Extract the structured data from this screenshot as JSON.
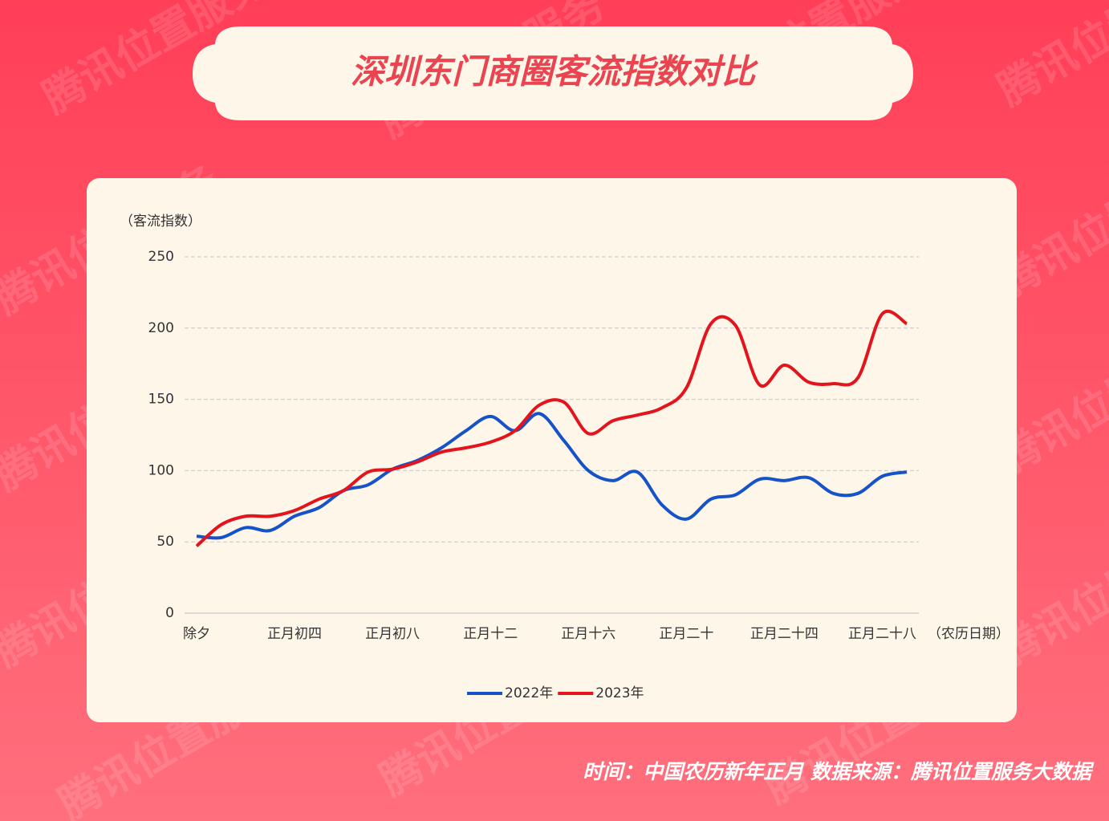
{
  "watermark": "腾讯位置服务",
  "chart_data": {
    "type": "line",
    "title": "深圳东门商圈客流指数对比",
    "y_label": "（客流指数）",
    "x_label": "（农历日期）",
    "footer": "时间：中国农历新年正月   数据来源：腾讯位置服务大数据",
    "categories": [
      "除夕",
      null,
      null,
      null,
      "正月初四",
      null,
      null,
      null,
      "正月初八",
      null,
      null,
      null,
      "正月十二",
      null,
      null,
      null,
      "正月十六",
      null,
      null,
      null,
      "正月二十",
      null,
      null,
      null,
      "正月二十四",
      null,
      null,
      null,
      "正月二十八",
      null
    ],
    "ylim": [
      0,
      250
    ],
    "yticks": [
      0,
      50,
      100,
      150,
      200,
      250
    ],
    "grid": true,
    "legend": "bottom",
    "series": [
      {
        "name": "2022年",
        "color": "#1652c8",
        "values": [
          54,
          53,
          60,
          58,
          68,
          74,
          86,
          90,
          101,
          107,
          116,
          128,
          138,
          128,
          140,
          121,
          100,
          93,
          99,
          76,
          66,
          80,
          83,
          94,
          93,
          95,
          84,
          84,
          96,
          99
        ]
      },
      {
        "name": "2023年",
        "color": "#e3141c",
        "values": [
          47,
          62,
          68,
          68,
          72,
          80,
          86,
          99,
          101,
          106,
          113,
          116,
          120,
          128,
          146,
          148,
          126,
          135,
          139,
          144,
          158,
          203,
          202,
          160,
          174,
          162,
          161,
          165,
          210,
          203
        ]
      }
    ]
  }
}
